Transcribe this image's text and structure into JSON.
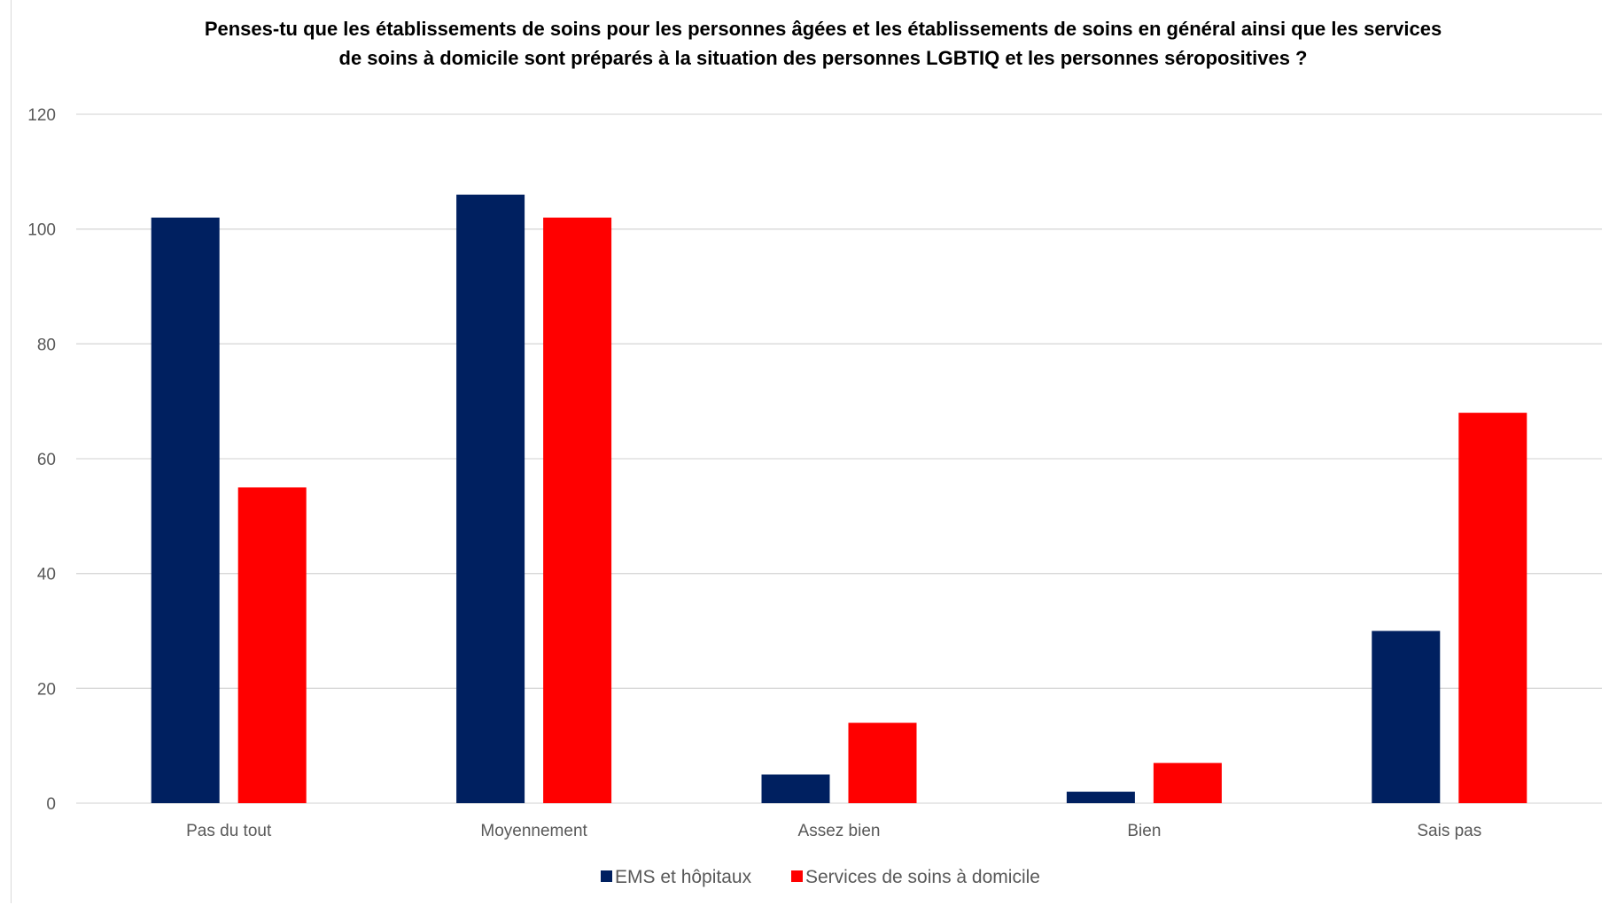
{
  "chart_data": {
    "type": "bar",
    "title_lines": [
      "Penses-tu que les établissements de soins pour les personnes âgées et les établissements de soins en général ainsi que les services",
      "de soins à domicile sont préparés à la situation des personnes LGBTIQ et les personnes séropositives ?"
    ],
    "categories": [
      "Pas du tout",
      "Moyennement",
      "Assez bien",
      "Bien",
      "Sais pas"
    ],
    "series": [
      {
        "name": "EMS et hôpitaux",
        "color": "#002060",
        "values": [
          102,
          106,
          5,
          2,
          30
        ]
      },
      {
        "name": "Services de soins à domicile",
        "color": "#ff0000",
        "values": [
          55,
          102,
          14,
          7,
          68
        ]
      }
    ],
    "ylim": [
      0,
      120
    ],
    "yticks": [
      "0",
      "20",
      "40",
      "60",
      "80",
      "100",
      "120"
    ],
    "grid": true,
    "legend": "bottom"
  }
}
